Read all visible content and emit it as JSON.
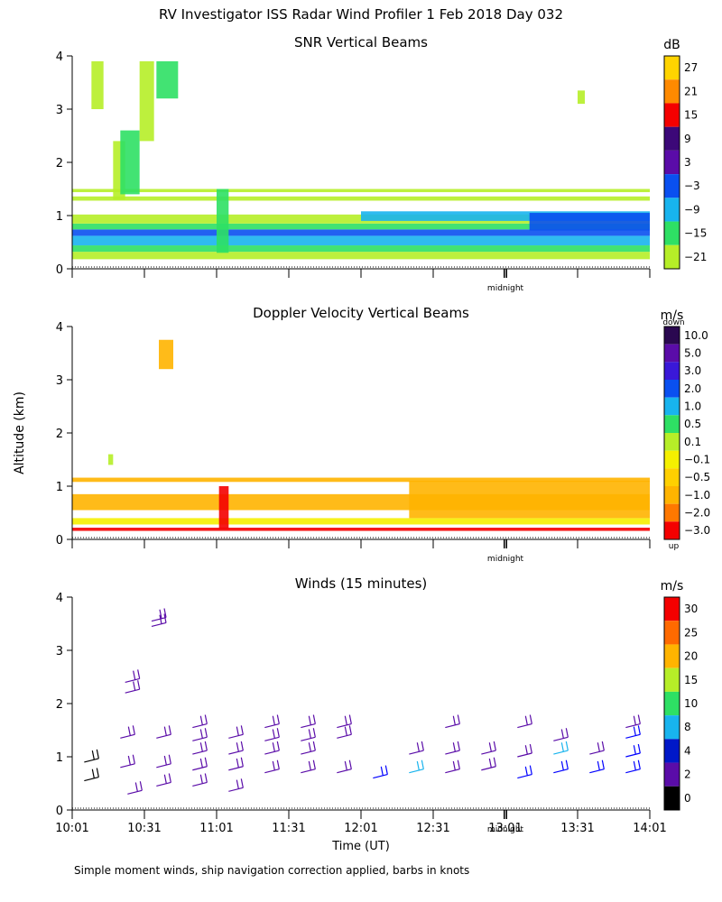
{
  "title": "RV Investigator ISS Radar Wind Profiler   1 Feb 2018 Day 032",
  "footnote": "Simple moment winds, ship navigation correction applied, barbs in knots",
  "shared_y_label": "Altitude (km)",
  "x_label": "Time (UT)",
  "midnight_label": "midnight",
  "colors": {
    "dark_blue": "#0018c8",
    "mid_blue": "#0a50f0",
    "cyan": "#18b4ee",
    "green": "#2ee064",
    "yellowgreen": "#b6ee28",
    "yellow": "#f5f000",
    "orange": "#ffb400",
    "red": "#f40000",
    "purple": "#5a0ca8",
    "dark_purple": "#3c0878"
  },
  "chart_data": [
    {
      "type": "heatmap",
      "title": "SNR Vertical Beams",
      "unit": "dB",
      "ylim": [
        0,
        4
      ],
      "y_ticks": [
        "0",
        "1",
        "2",
        "3",
        "4"
      ],
      "x_range_minutes": [
        0,
        240
      ],
      "midnight_minutes": 180,
      "colorbar": {
        "ticks": [
          "27",
          "21",
          "15",
          "9",
          "3",
          "−3",
          "−9",
          "−15",
          "−21"
        ],
        "colors": [
          "#ffd400",
          "#ff8a00",
          "#f40000",
          "#3c0878",
          "#5a0ca8",
          "#0a50f0",
          "#18b4ee",
          "#2ee064",
          "#b6ee28"
        ]
      },
      "features": [
        {
          "kind": "band",
          "t": [
            0,
            240
          ],
          "alt": [
            0.18,
            0.32
          ],
          "color": "yellowgreen"
        },
        {
          "kind": "band",
          "t": [
            0,
            240
          ],
          "alt": [
            0.32,
            0.44
          ],
          "color": "green"
        },
        {
          "kind": "band",
          "t": [
            0,
            240
          ],
          "alt": [
            0.44,
            0.62
          ],
          "color": "cyan"
        },
        {
          "kind": "band",
          "t": [
            0,
            240
          ],
          "alt": [
            0.62,
            0.74
          ],
          "color": "mid_blue"
        },
        {
          "kind": "band",
          "t": [
            0,
            240
          ],
          "alt": [
            0.74,
            0.85
          ],
          "color": "green"
        },
        {
          "kind": "band",
          "t": [
            0,
            240
          ],
          "alt": [
            0.85,
            1.02
          ],
          "color": "yellowgreen"
        },
        {
          "kind": "band",
          "t": [
            0,
            240
          ],
          "alt": [
            1.28,
            1.36
          ],
          "color": "yellowgreen"
        },
        {
          "kind": "band",
          "t": [
            0,
            240
          ],
          "alt": [
            1.44,
            1.5
          ],
          "color": "yellowgreen"
        },
        {
          "kind": "band",
          "t": [
            120,
            240
          ],
          "alt": [
            0.9,
            1.08
          ],
          "color": "cyan"
        },
        {
          "kind": "band",
          "t": [
            190,
            240
          ],
          "alt": [
            0.72,
            1.05
          ],
          "color": "mid_blue"
        },
        {
          "kind": "band",
          "t": [
            60,
            65
          ],
          "alt": [
            0.3,
            1.5
          ],
          "color": "green"
        },
        {
          "kind": "band",
          "t": [
            8,
            13
          ],
          "alt": [
            3.0,
            3.9
          ],
          "color": "yellowgreen"
        },
        {
          "kind": "band",
          "t": [
            17,
            22
          ],
          "alt": [
            1.3,
            2.4
          ],
          "color": "yellowgreen"
        },
        {
          "kind": "band",
          "t": [
            20,
            28
          ],
          "alt": [
            1.4,
            2.6
          ],
          "color": "green"
        },
        {
          "kind": "band",
          "t": [
            28,
            34
          ],
          "alt": [
            2.4,
            3.9
          ],
          "color": "yellowgreen"
        },
        {
          "kind": "band",
          "t": [
            35,
            44
          ],
          "alt": [
            3.2,
            3.9
          ],
          "color": "green"
        },
        {
          "kind": "band",
          "t": [
            210,
            213
          ],
          "alt": [
            3.1,
            3.35
          ],
          "color": "yellowgreen"
        }
      ]
    },
    {
      "type": "heatmap",
      "title": "Doppler Velocity Vertical Beams",
      "unit": "m/s",
      "ylim": [
        0,
        4
      ],
      "y_ticks": [
        "0",
        "1",
        "2",
        "3",
        "4"
      ],
      "x_range_minutes": [
        0,
        240
      ],
      "midnight_minutes": 180,
      "colorbar": {
        "top_label": "down",
        "bottom_label": "up",
        "ticks": [
          "10.0",
          "5.0",
          "3.0",
          "2.0",
          "1.0",
          "0.5",
          "0.1",
          "−0.1",
          "−0.5",
          "−1.0",
          "−2.0",
          "−3.0"
        ],
        "colors": [
          "#2a0850",
          "#5a0ca8",
          "#3a18d8",
          "#0a50f0",
          "#18b4ee",
          "#2ee064",
          "#b6ee28",
          "#f5f000",
          "#ffd000",
          "#ffb400",
          "#ff7800",
          "#f40000"
        ]
      },
      "features": [
        {
          "kind": "band",
          "t": [
            0,
            240
          ],
          "alt": [
            1.08,
            1.16
          ],
          "color": "orange"
        },
        {
          "kind": "band",
          "t": [
            0,
            240
          ],
          "alt": [
            0.55,
            0.85
          ],
          "color": "orange"
        },
        {
          "kind": "band",
          "t": [
            0,
            240
          ],
          "alt": [
            0.28,
            0.4
          ],
          "color": "yellow"
        },
        {
          "kind": "band",
          "t": [
            0,
            240
          ],
          "alt": [
            0.16,
            0.22
          ],
          "color": "red"
        },
        {
          "kind": "band",
          "t": [
            140,
            240
          ],
          "alt": [
            0.4,
            1.1
          ],
          "color": "orange"
        },
        {
          "kind": "band",
          "t": [
            36,
            42
          ],
          "alt": [
            3.2,
            3.75
          ],
          "color": "orange"
        },
        {
          "kind": "band",
          "t": [
            15,
            17
          ],
          "alt": [
            1.4,
            1.6
          ],
          "color": "yellowgreen"
        },
        {
          "kind": "band",
          "t": [
            61,
            65
          ],
          "alt": [
            0.2,
            1.0
          ],
          "color": "red"
        }
      ]
    },
    {
      "type": "wind_barbs",
      "title": "Winds (15 minutes)",
      "unit": "m/s",
      "ylim": [
        0,
        4
      ],
      "y_ticks": [
        "0",
        "1",
        "2",
        "3",
        "4"
      ],
      "x_ticks": [
        "10:01",
        "10:31",
        "11:01",
        "11:31",
        "12:01",
        "12:31",
        "13:01",
        "13:31",
        "14:01"
      ],
      "x_range_minutes": [
        0,
        240
      ],
      "midnight_minutes": 180,
      "colorbar": {
        "ticks": [
          "30",
          "25",
          "20",
          "15",
          "10",
          "8",
          "4",
          "2",
          "0"
        ],
        "colors": [
          "#f40000",
          "#ff6a00",
          "#ffb400",
          "#b6ee28",
          "#2ee064",
          "#18b4ee",
          "#0018c8",
          "#5a0ca8",
          "#000000"
        ]
      },
      "barbs": [
        {
          "t": 5,
          "alt": 0.9,
          "color": "black"
        },
        {
          "t": 5,
          "alt": 0.55,
          "color": "black"
        },
        {
          "t": 20,
          "alt": 1.35,
          "color": "purple"
        },
        {
          "t": 20,
          "alt": 0.8,
          "color": "purple"
        },
        {
          "t": 22,
          "alt": 2.4,
          "color": "purple"
        },
        {
          "t": 22,
          "alt": 2.2,
          "color": "purple"
        },
        {
          "t": 23,
          "alt": 0.3,
          "color": "purple"
        },
        {
          "t": 33,
          "alt": 3.55,
          "color": "purple"
        },
        {
          "t": 33,
          "alt": 3.45,
          "color": "purple"
        },
        {
          "t": 35,
          "alt": 1.35,
          "color": "purple"
        },
        {
          "t": 35,
          "alt": 0.8,
          "color": "purple"
        },
        {
          "t": 35,
          "alt": 0.45,
          "color": "purple"
        },
        {
          "t": 50,
          "alt": 1.55,
          "color": "purple"
        },
        {
          "t": 50,
          "alt": 1.3,
          "color": "purple"
        },
        {
          "t": 50,
          "alt": 1.05,
          "color": "purple"
        },
        {
          "t": 50,
          "alt": 0.75,
          "color": "purple"
        },
        {
          "t": 50,
          "alt": 0.45,
          "color": "purple"
        },
        {
          "t": 65,
          "alt": 1.35,
          "color": "purple"
        },
        {
          "t": 65,
          "alt": 1.05,
          "color": "purple"
        },
        {
          "t": 65,
          "alt": 0.75,
          "color": "purple"
        },
        {
          "t": 65,
          "alt": 0.35,
          "color": "purple"
        },
        {
          "t": 80,
          "alt": 1.55,
          "color": "purple"
        },
        {
          "t": 80,
          "alt": 1.3,
          "color": "purple"
        },
        {
          "t": 80,
          "alt": 1.05,
          "color": "purple"
        },
        {
          "t": 80,
          "alt": 0.7,
          "color": "purple"
        },
        {
          "t": 95,
          "alt": 1.55,
          "color": "purple"
        },
        {
          "t": 95,
          "alt": 1.3,
          "color": "purple"
        },
        {
          "t": 95,
          "alt": 1.05,
          "color": "purple"
        },
        {
          "t": 95,
          "alt": 0.7,
          "color": "purple"
        },
        {
          "t": 110,
          "alt": 1.55,
          "color": "purple"
        },
        {
          "t": 110,
          "alt": 1.35,
          "color": "purple"
        },
        {
          "t": 110,
          "alt": 0.7,
          "color": "purple"
        },
        {
          "t": 125,
          "alt": 0.6,
          "color": "blue"
        },
        {
          "t": 140,
          "alt": 1.05,
          "color": "purple"
        },
        {
          "t": 140,
          "alt": 0.7,
          "color": "cyan"
        },
        {
          "t": 155,
          "alt": 1.55,
          "color": "purple"
        },
        {
          "t": 155,
          "alt": 1.05,
          "color": "purple"
        },
        {
          "t": 155,
          "alt": 0.7,
          "color": "purple"
        },
        {
          "t": 170,
          "alt": 1.05,
          "color": "purple"
        },
        {
          "t": 170,
          "alt": 0.75,
          "color": "purple"
        },
        {
          "t": 185,
          "alt": 1.55,
          "color": "purple"
        },
        {
          "t": 185,
          "alt": 1.0,
          "color": "purple"
        },
        {
          "t": 185,
          "alt": 0.6,
          "color": "blue"
        },
        {
          "t": 200,
          "alt": 1.3,
          "color": "purple"
        },
        {
          "t": 200,
          "alt": 1.05,
          "color": "cyan"
        },
        {
          "t": 200,
          "alt": 0.7,
          "color": "blue"
        },
        {
          "t": 215,
          "alt": 1.05,
          "color": "purple"
        },
        {
          "t": 215,
          "alt": 0.7,
          "color": "blue"
        },
        {
          "t": 230,
          "alt": 1.55,
          "color": "purple"
        },
        {
          "t": 230,
          "alt": 1.35,
          "color": "blue"
        },
        {
          "t": 230,
          "alt": 1.0,
          "color": "blue"
        },
        {
          "t": 230,
          "alt": 0.7,
          "color": "blue"
        }
      ]
    }
  ]
}
